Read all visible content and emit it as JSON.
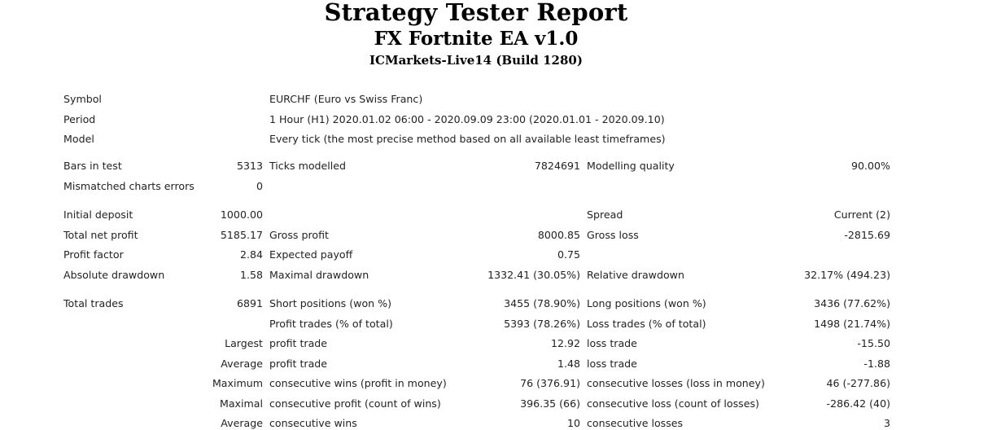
{
  "header": {
    "title": "Strategy Tester Report",
    "ea_name": "FX Fortnite EA v1.0",
    "server": "ICMarkets-Live14 (Build 1280)"
  },
  "info": {
    "symbol_label": "Symbol",
    "symbol_value": "EURCHF (Euro vs Swiss Franc)",
    "period_label": "Period",
    "period_value": "1 Hour (H1) 2020.01.02 06:00 - 2020.09.09 23:00 (2020.01.01 - 2020.09.10)",
    "model_label": "Model",
    "model_value": "Every tick (the most precise method based on all available least timeframes)"
  },
  "test": {
    "bars_label": "Bars in test",
    "bars_value": "5313",
    "ticks_label": "Ticks modelled",
    "ticks_value": "7824691",
    "quality_label": "Modelling quality",
    "quality_value": "90.00%",
    "mismatch_label": "Mismatched charts errors",
    "mismatch_value": "0"
  },
  "results": {
    "initial_deposit_label": "Initial deposit",
    "initial_deposit_value": "1000.00",
    "spread_label": "Spread",
    "spread_value": "Current (2)",
    "total_net_profit_label": "Total net profit",
    "total_net_profit_value": "5185.17",
    "gross_profit_label": "Gross profit",
    "gross_profit_value": "8000.85",
    "gross_loss_label": "Gross loss",
    "gross_loss_value": "-2815.69",
    "profit_factor_label": "Profit factor",
    "profit_factor_value": "2.84",
    "expected_payoff_label": "Expected payoff",
    "expected_payoff_value": "0.75",
    "absolute_drawdown_label": "Absolute drawdown",
    "absolute_drawdown_value": "1.58",
    "maximal_drawdown_label": "Maximal drawdown",
    "maximal_drawdown_value": "1332.41 (30.05%)",
    "relative_drawdown_label": "Relative drawdown",
    "relative_drawdown_value": "32.17% (494.23)"
  },
  "trades": {
    "total_trades_label": "Total trades",
    "total_trades_value": "6891",
    "short_label": "Short positions (won %)",
    "short_value": "3455 (78.90%)",
    "long_label": "Long positions (won %)",
    "long_value": "3436 (77.62%)",
    "profit_trades_label": "Profit trades (% of total)",
    "profit_trades_value": "5393 (78.26%)",
    "loss_trades_label": "Loss trades (% of total)",
    "loss_trades_value": "1498 (21.74%)",
    "largest_label": "Largest",
    "largest_profit_label": "profit trade",
    "largest_profit_value": "12.92",
    "largest_loss_label": "loss trade",
    "largest_loss_value": "-15.50",
    "average_label": "Average",
    "average_profit_label": "profit trade",
    "average_profit_value": "1.48",
    "average_loss_label": "loss trade",
    "average_loss_value": "-1.88",
    "maximum_label": "Maximum",
    "max_wins_label": "consecutive wins (profit in money)",
    "max_wins_value": "76 (376.91)",
    "max_losses_label": "consecutive losses (loss in money)",
    "max_losses_value": "46 (-277.86)",
    "maximal_label": "Maximal",
    "maximal_profit_label": "consecutive profit (count of wins)",
    "maximal_profit_value": "396.35 (66)",
    "maximal_loss_label": "consecutive loss (count of losses)",
    "maximal_loss_value": "-286.42 (40)",
    "average2_label": "Average",
    "avg_cons_wins_label": "consecutive wins",
    "avg_cons_wins_value": "10",
    "avg_cons_losses_label": "consecutive losses",
    "avg_cons_losses_value": "3"
  }
}
